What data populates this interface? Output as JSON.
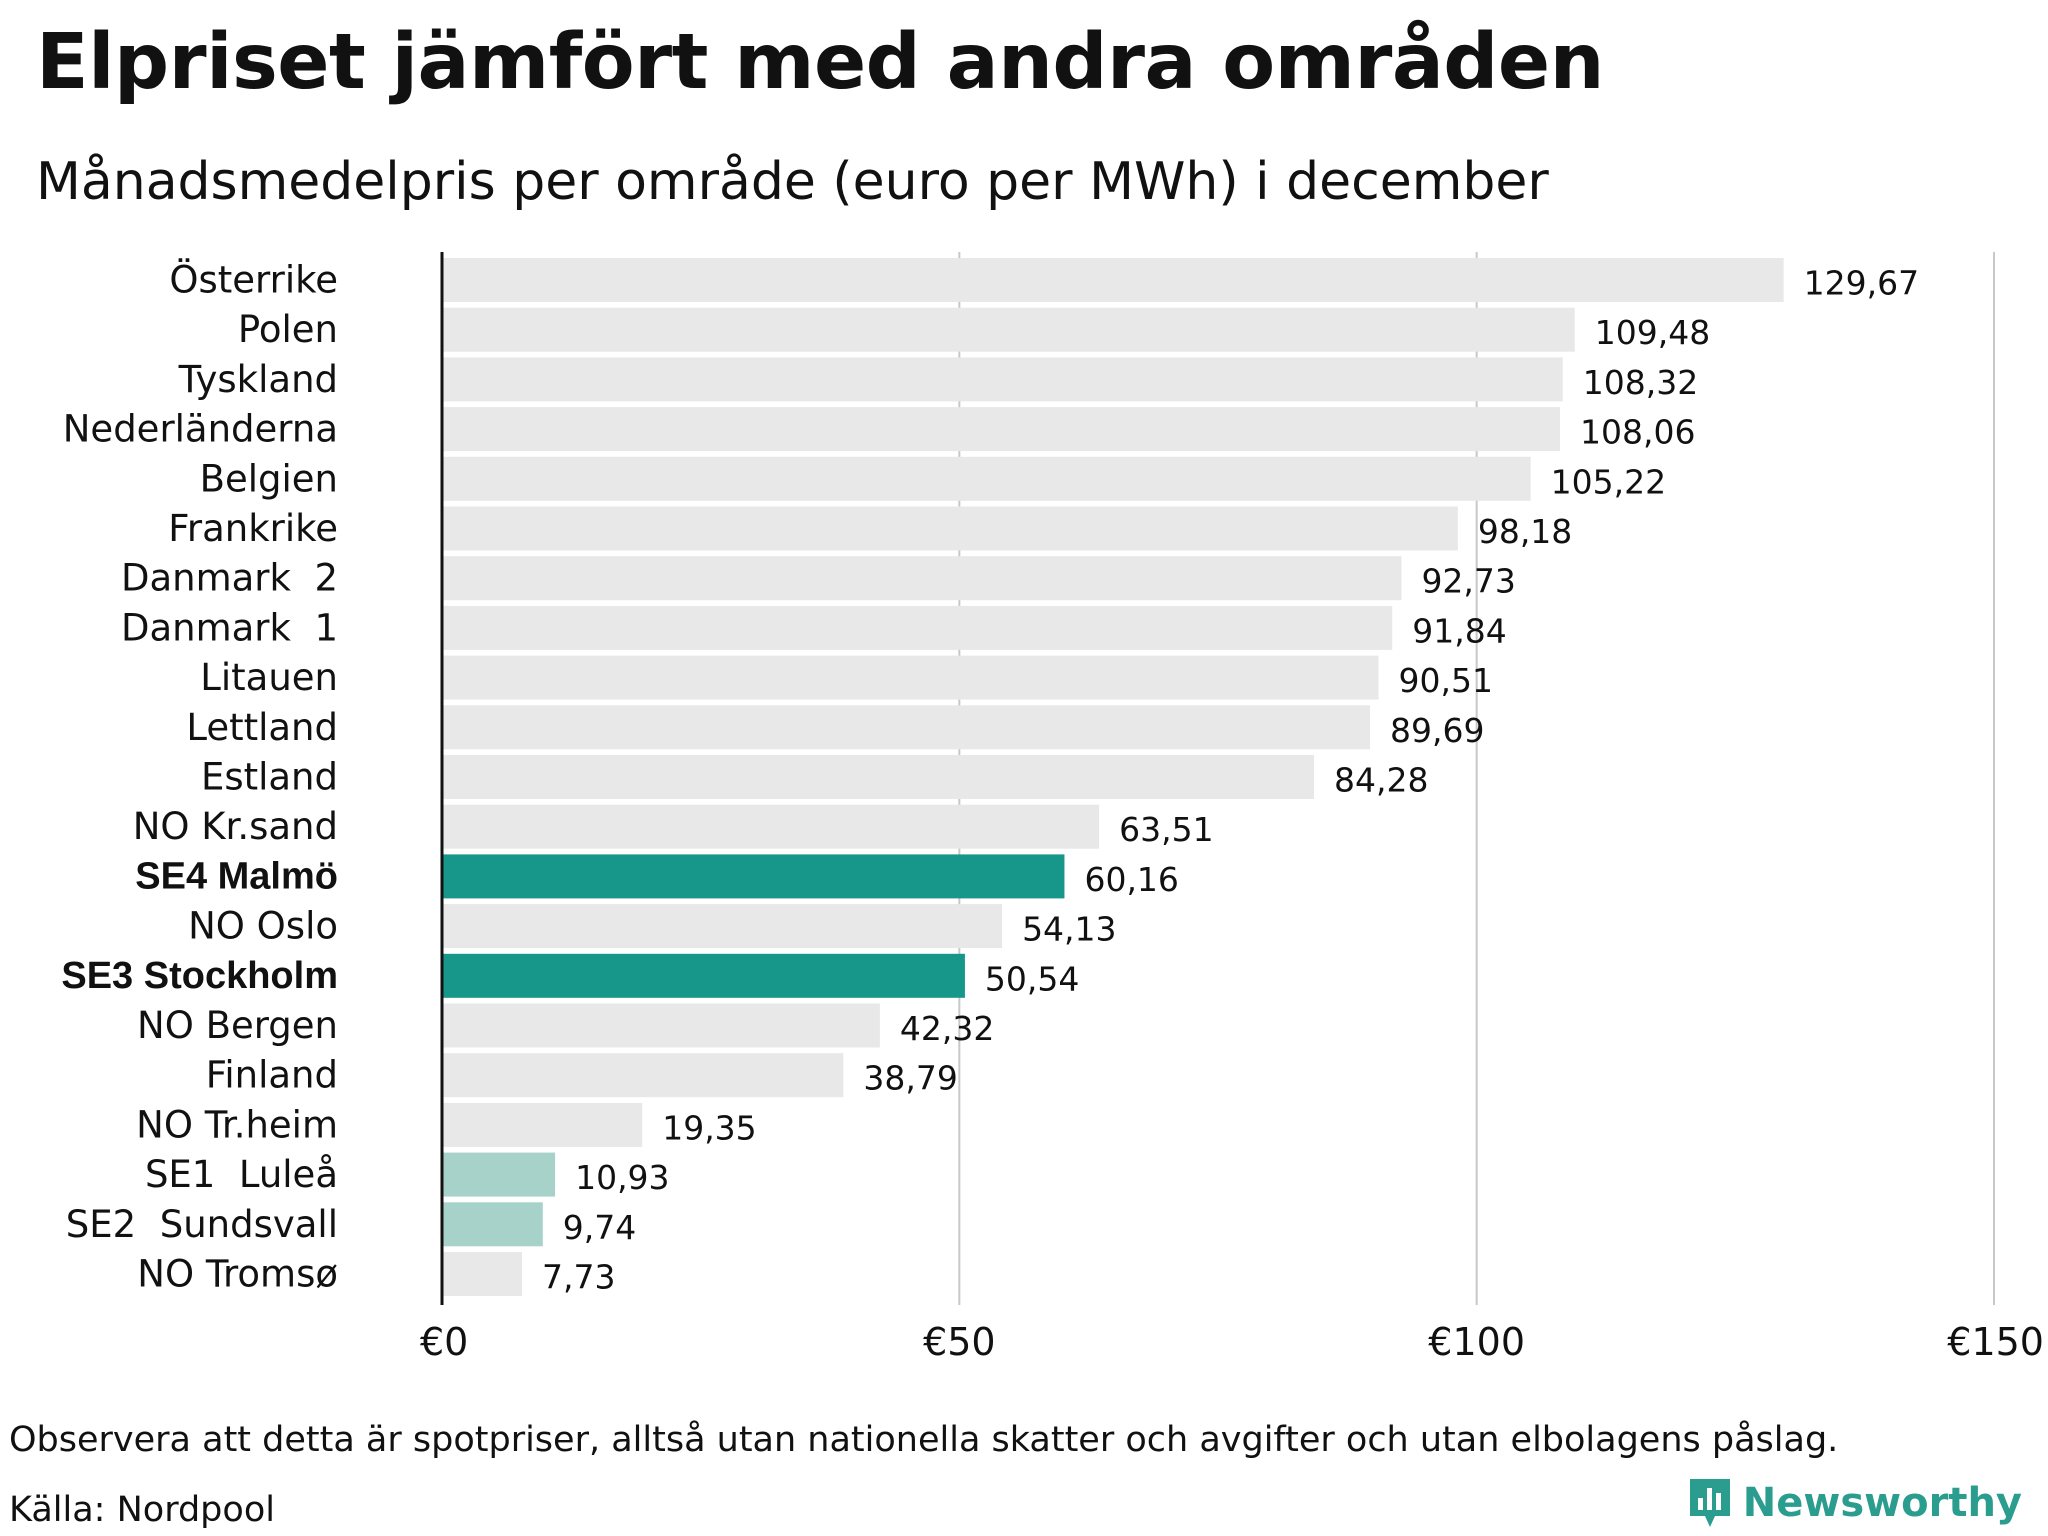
{
  "title": "Elpriset jämfört med andra områden",
  "subtitle": "Månadsmedelpris per område (euro per MWh) i december",
  "note": "Observera att detta är spotpriser, alltså utan nationella skatter och avgifter och utan elbolagens påslag.",
  "source": "Källa: Nordpool",
  "brand": {
    "name": "Newsworthy",
    "icon": "newsworthy-logo-icon"
  },
  "colors": {
    "bar_default": "#e8e8e8",
    "bar_highlight": "#17968a",
    "bar_highlight_light": "#a6d2ca",
    "grid": "#c8c8c8",
    "axis": "#111111",
    "brand": "#2a9d8f"
  },
  "chart_data": {
    "type": "bar",
    "orientation": "horizontal",
    "categories": [
      "Österrike",
      "Polen",
      "Tyskland",
      "Nederländerna",
      "Belgien",
      "Frankrike",
      "Danmark  2",
      "Danmark  1",
      "Litauen",
      "Lettland",
      "Estland",
      "NO Kr.sand",
      "SE4 Malmö",
      "NO Oslo",
      "SE3 Stockholm",
      "NO Bergen",
      "Finland",
      "NO Tr.heim",
      "SE1  Luleå",
      "SE2  Sundsvall",
      "NO Tromsø"
    ],
    "values": [
      129.67,
      109.48,
      108.32,
      108.06,
      105.22,
      98.18,
      92.73,
      91.84,
      90.51,
      89.69,
      84.28,
      63.51,
      60.16,
      54.13,
      50.54,
      42.32,
      38.79,
      19.35,
      10.93,
      9.74,
      7.73
    ],
    "value_labels": [
      "129,67",
      "109,48",
      "108,32",
      "108,06",
      "105,22",
      "98,18",
      "92,73",
      "91,84",
      "90,51",
      "89,69",
      "84,28",
      "63,51",
      "60,16",
      "54,13",
      "50,54",
      "42,32",
      "38,79",
      "19,35",
      "10,93",
      "9,74",
      "7,73"
    ],
    "bar_styles": [
      "default",
      "default",
      "default",
      "default",
      "default",
      "default",
      "default",
      "default",
      "default",
      "default",
      "default",
      "default",
      "highlight",
      "default",
      "highlight",
      "default",
      "default",
      "default",
      "highlight_light",
      "highlight_light",
      "default"
    ],
    "bold_categories": [
      "SE4 Malmö",
      "SE3 Stockholm"
    ],
    "xlim": [
      0,
      150
    ],
    "xticks": [
      0,
      50,
      100,
      150
    ],
    "xtick_labels": [
      "€0",
      "€50",
      "€100",
      "€150"
    ],
    "xlabel": "",
    "ylabel": "",
    "grid": true
  }
}
